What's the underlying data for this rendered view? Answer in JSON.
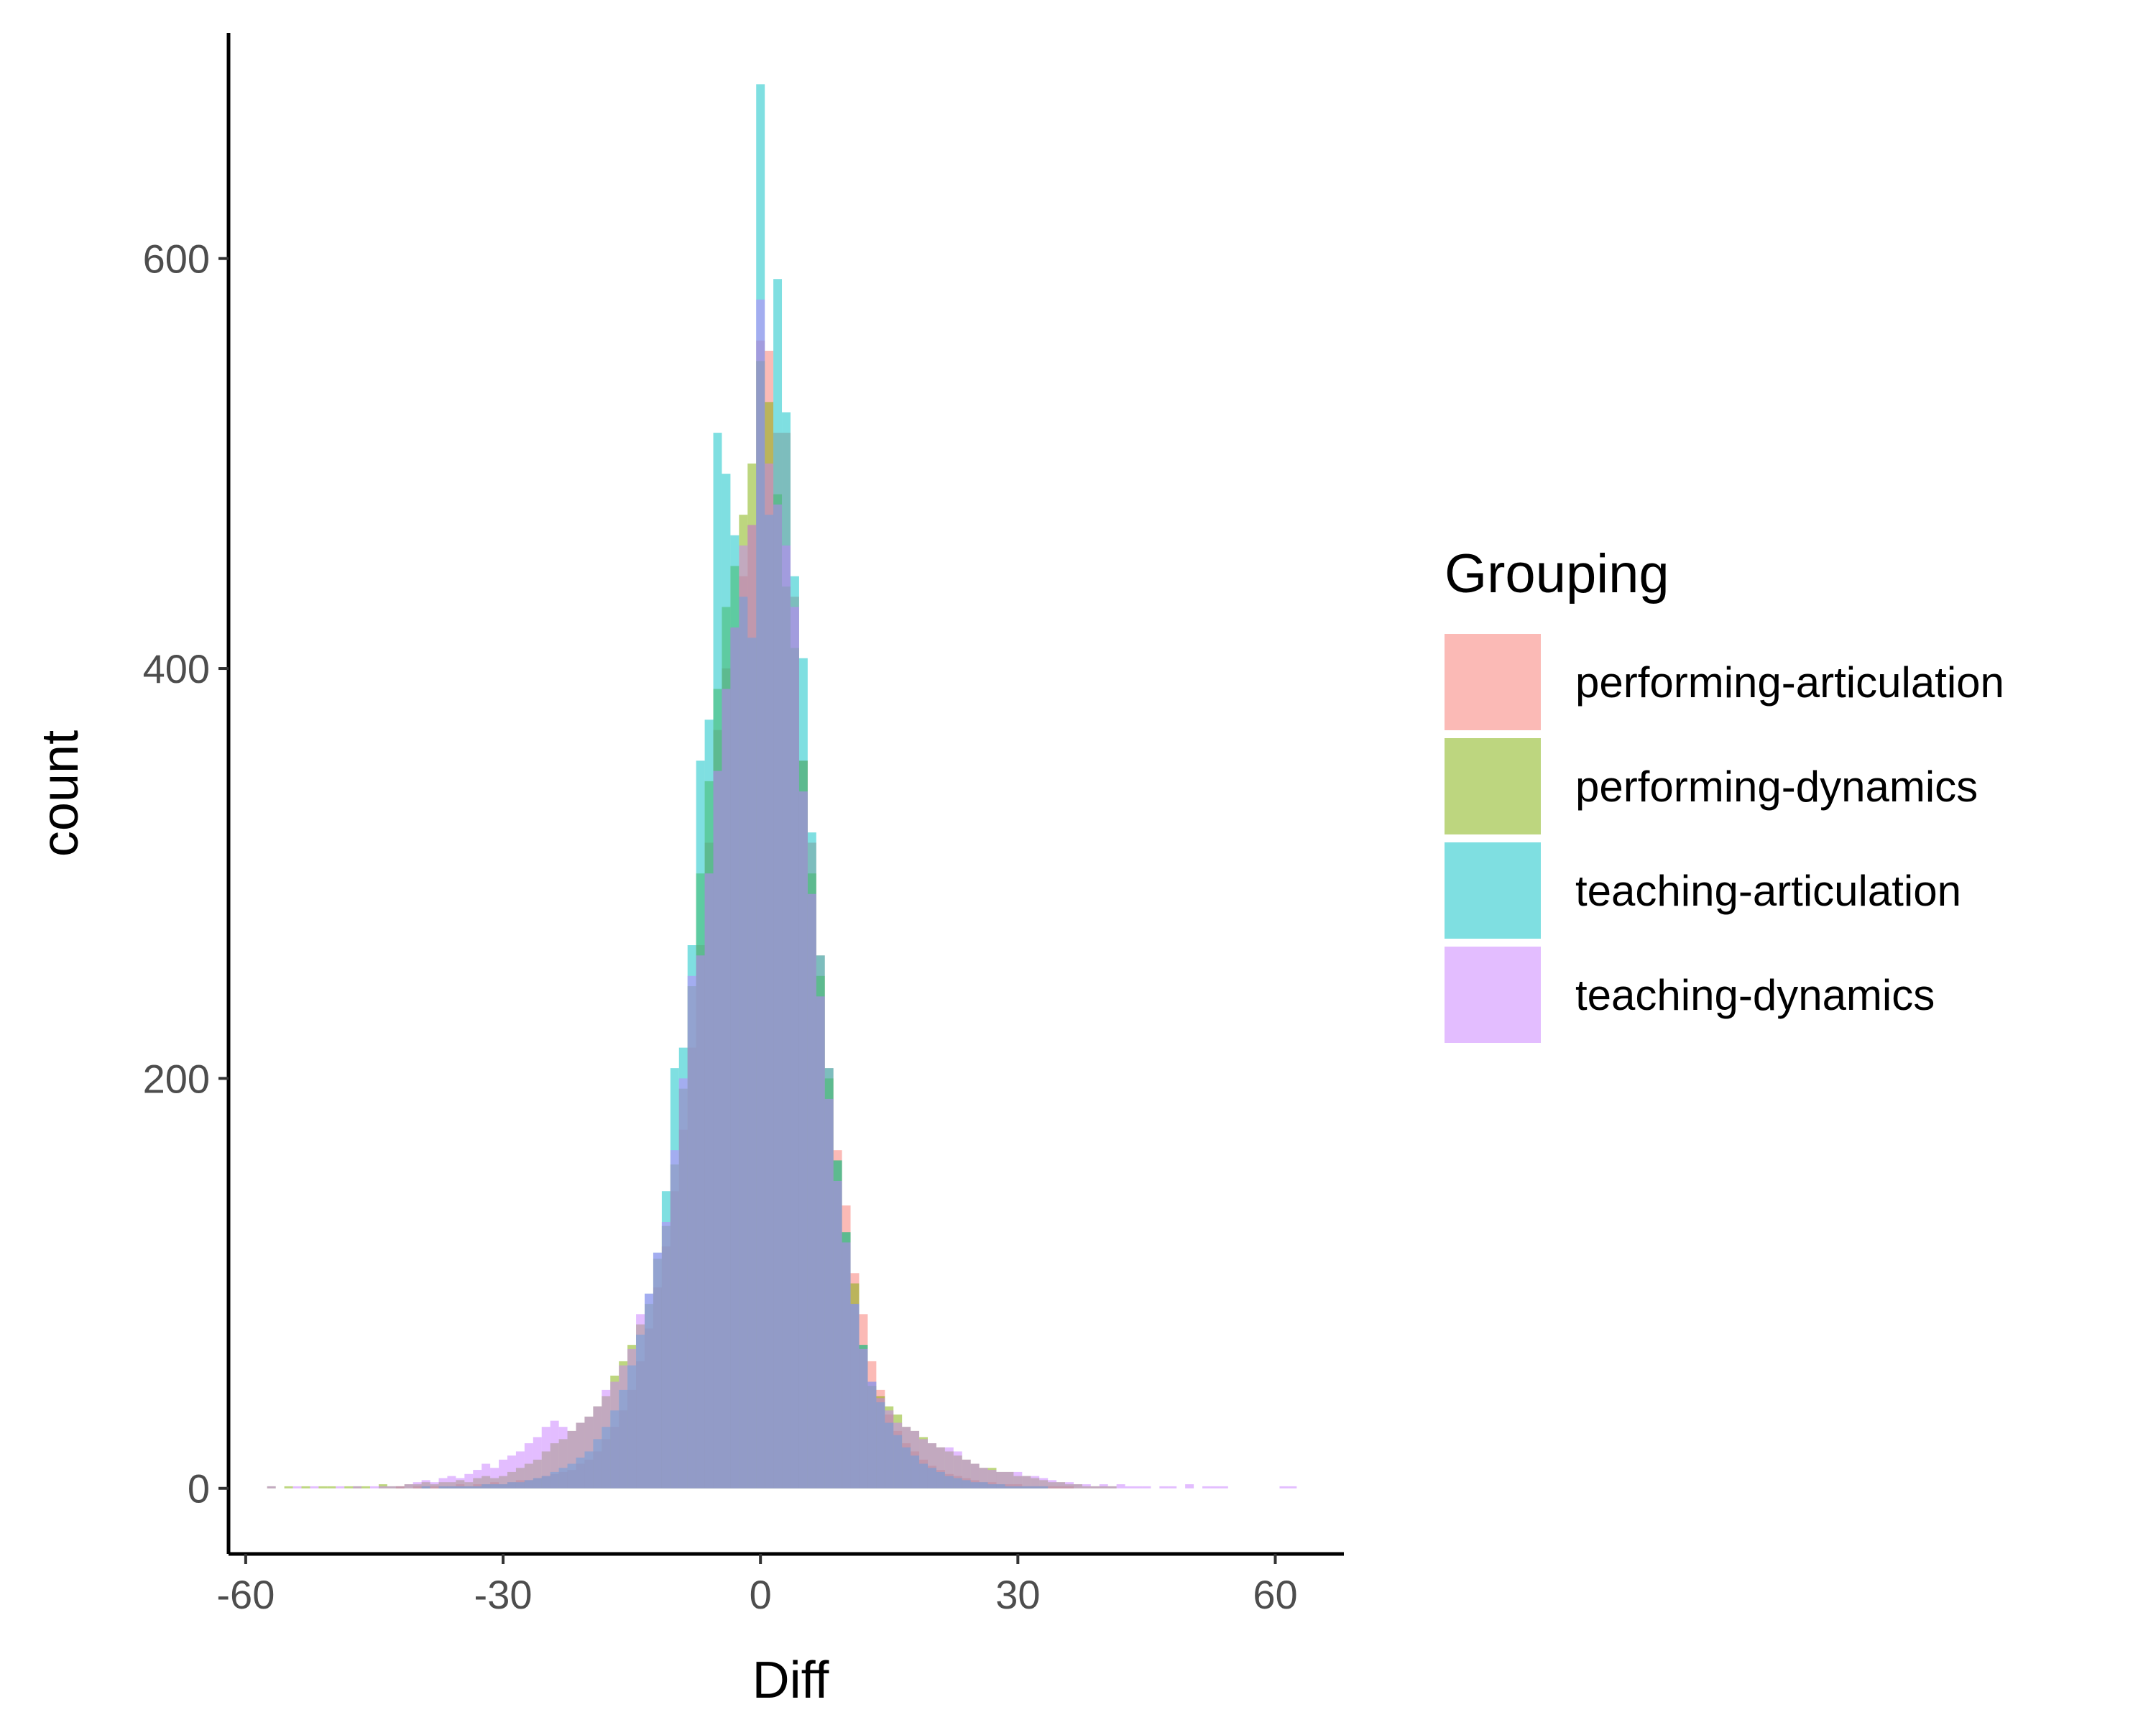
{
  "chart_data": {
    "type": "histogram",
    "xlabel": "Diff",
    "ylabel": "count",
    "xlim": [
      -62,
      68
    ],
    "ylim": [
      -32,
      710
    ],
    "x_ticks": [
      -60,
      -30,
      0,
      30,
      60
    ],
    "y_ticks": [
      0,
      200,
      400,
      600
    ],
    "bin_width": 1,
    "bins_x": [
      -58,
      -57,
      -56,
      -55,
      -54,
      -53,
      -52,
      -51,
      -50,
      -49,
      -48,
      -47,
      -46,
      -45,
      -44,
      -43,
      -42,
      -41,
      -40,
      -39,
      -38,
      -37,
      -36,
      -35,
      -34,
      -33,
      -32,
      -31,
      -30,
      -29,
      -28,
      -27,
      -26,
      -25,
      -24,
      -23,
      -22,
      -21,
      -20,
      -19,
      -18,
      -17,
      -16,
      -15,
      -14,
      -13,
      -12,
      -11,
      -10,
      -9,
      -8,
      -7,
      -6,
      -5,
      -4,
      -3,
      -2,
      -1,
      0,
      1,
      2,
      3,
      4,
      5,
      6,
      7,
      8,
      9,
      10,
      11,
      12,
      13,
      14,
      15,
      16,
      17,
      18,
      19,
      20,
      21,
      22,
      23,
      24,
      25,
      26,
      27,
      28,
      29,
      30,
      31,
      32,
      33,
      34,
      35,
      36,
      37,
      38,
      39,
      40,
      41,
      42,
      43,
      44,
      45,
      46,
      47,
      48,
      49,
      50,
      51,
      52,
      53,
      54,
      55,
      56,
      57,
      58,
      59,
      60,
      61,
      62
    ],
    "legend": {
      "title": "Grouping",
      "position": "right"
    },
    "grid": false,
    "series": [
      {
        "name": "performing-articulation",
        "color": "#F8766D",
        "values": [
          0,
          0,
          0,
          0,
          0,
          0,
          0,
          0,
          0,
          0,
          0,
          0,
          0,
          0,
          0,
          0,
          1,
          0,
          1,
          1,
          1,
          1,
          1,
          2,
          1,
          2,
          2,
          3,
          2,
          3,
          4,
          4,
          5,
          6,
          7,
          8,
          9,
          12,
          14,
          18,
          24,
          30,
          38,
          48,
          62,
          78,
          98,
          118,
          145,
          175,
          215,
          265,
          315,
          370,
          400,
          420,
          445,
          470,
          560,
          555,
          515,
          515,
          435,
          355,
          315,
          260,
          205,
          165,
          138,
          105,
          85,
          62,
          48,
          36,
          28,
          22,
          18,
          14,
          11,
          9,
          7,
          6,
          5,
          4,
          3,
          3,
          2,
          2,
          2,
          1,
          1,
          1,
          1,
          1,
          1,
          0,
          0,
          0,
          0,
          0,
          0,
          0,
          0,
          0,
          0,
          0,
          0,
          0,
          0,
          0,
          0,
          0,
          0,
          0,
          0,
          0,
          0,
          0,
          0,
          0,
          0
        ]
      },
      {
        "name": "performing-dynamics",
        "color": "#7CAE00",
        "values": [
          0,
          1,
          0,
          1,
          0,
          1,
          0,
          1,
          1,
          0,
          1,
          1,
          1,
          0,
          2,
          1,
          1,
          2,
          2,
          3,
          2,
          3,
          3,
          4,
          3,
          5,
          6,
          5,
          6,
          8,
          10,
          12,
          14,
          18,
          22,
          24,
          28,
          32,
          35,
          40,
          45,
          55,
          62,
          70,
          80,
          90,
          112,
          128,
          158,
          195,
          245,
          300,
          345,
          390,
          430,
          450,
          475,
          500,
          550,
          530,
          485,
          440,
          410,
          355,
          300,
          250,
          200,
          160,
          125,
          100,
          70,
          50,
          45,
          40,
          36,
          30,
          28,
          25,
          22,
          20,
          18,
          16,
          14,
          12,
          10,
          10,
          8,
          8,
          6,
          6,
          5,
          4,
          3,
          3,
          2,
          2,
          1,
          1,
          1,
          1,
          0,
          0,
          0,
          0,
          0,
          0,
          0,
          0,
          0,
          0,
          0,
          0,
          0,
          0,
          0,
          0,
          0,
          0,
          0,
          0,
          0
        ]
      },
      {
        "name": "teaching-articulation",
        "color": "#00BFC4",
        "values": [
          0,
          0,
          0,
          0,
          0,
          0,
          0,
          0,
          0,
          0,
          0,
          0,
          0,
          0,
          0,
          0,
          0,
          0,
          0,
          1,
          0,
          1,
          1,
          1,
          1,
          1,
          2,
          2,
          2,
          3,
          3,
          4,
          5,
          6,
          8,
          10,
          12,
          15,
          18,
          24,
          30,
          38,
          48,
          60,
          75,
          95,
          115,
          145,
          205,
          215,
          265,
          355,
          375,
          515,
          495,
          465,
          435,
          415,
          685,
          475,
          590,
          525,
          445,
          405,
          320,
          260,
          205,
          160,
          125,
          90,
          70,
          52,
          42,
          32,
          26,
          20,
          16,
          12,
          10,
          8,
          6,
          5,
          4,
          3,
          3,
          2,
          2,
          1,
          1,
          1,
          1,
          1,
          0,
          0,
          0,
          0,
          0,
          0,
          0,
          0,
          0,
          0,
          0,
          0,
          0,
          0,
          0,
          0,
          0,
          0,
          0,
          0,
          0,
          0,
          0,
          0,
          0,
          0,
          0,
          0,
          0
        ]
      },
      {
        "name": "teaching-dynamics",
        "color": "#C77CFF",
        "values": [
          0,
          1,
          0,
          0,
          1,
          0,
          1,
          0,
          0,
          1,
          0,
          1,
          0,
          1,
          1,
          1,
          1,
          2,
          3,
          4,
          3,
          5,
          6,
          5,
          7,
          9,
          12,
          10,
          14,
          16,
          18,
          22,
          25,
          30,
          33,
          30,
          28,
          32,
          35,
          40,
          48,
          52,
          60,
          68,
          85,
          95,
          115,
          130,
          165,
          200,
          250,
          260,
          300,
          350,
          390,
          420,
          460,
          470,
          580,
          500,
          480,
          460,
          430,
          340,
          290,
          240,
          190,
          150,
          120,
          90,
          68,
          52,
          44,
          38,
          32,
          30,
          28,
          24,
          22,
          20,
          20,
          18,
          14,
          12,
          10,
          9,
          8,
          8,
          8,
          6,
          6,
          5,
          4,
          3,
          3,
          2,
          2,
          1,
          2,
          1,
          2,
          1,
          1,
          1,
          0,
          1,
          1,
          0,
          2,
          0,
          1,
          1,
          1,
          0,
          0,
          0,
          0,
          0,
          0,
          1,
          1
        ]
      }
    ]
  }
}
